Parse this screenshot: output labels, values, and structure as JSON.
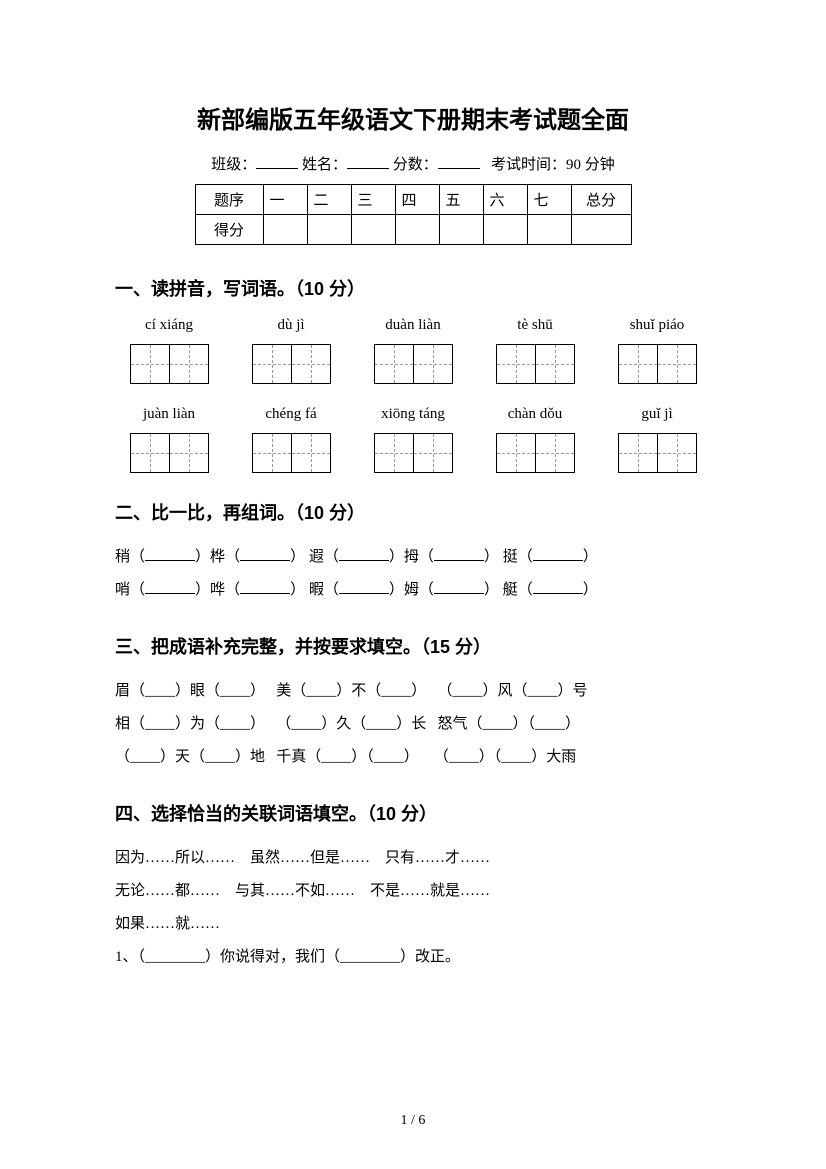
{
  "title": "新部编版五年级语文下册期末考试题全面",
  "meta": {
    "class_label": "班级：",
    "name_label": "姓名：",
    "score_label": "分数：",
    "exam_time": "考试时间：90 分钟"
  },
  "score_table": {
    "header_label": "题序",
    "row_label": "得分",
    "columns": [
      "一",
      "二",
      "三",
      "四",
      "五",
      "六",
      "七"
    ],
    "total_label": "总分"
  },
  "section1": {
    "title": "一、读拼音，写词语。（10 分）",
    "row1": [
      "cí xiáng",
      "dù jì",
      "duàn liàn",
      "tè shū",
      "shuǐ piáo"
    ],
    "row2": [
      "juàn liàn",
      "chéng fá",
      "xiōng táng",
      "chàn dǒu",
      "guǐ jì"
    ]
  },
  "section2": {
    "title": "二、比一比，再组词。（10 分）",
    "pairs": [
      [
        "稍",
        "哨"
      ],
      [
        "桦",
        "哗"
      ],
      [
        "遐",
        "暇"
      ],
      [
        "拇",
        "姆"
      ],
      [
        "挺",
        "艇"
      ]
    ]
  },
  "section3": {
    "title": "三、把成语补充完整，并按要求填空。（15 分）",
    "items_row1": [
      "眉（____）眼（____）",
      "美（____）不（____）",
      "（____）风（____）号"
    ],
    "items_row2": [
      "相（____）为（____）",
      "（____）久（____）长",
      "怒气（____）（____）"
    ],
    "items_row3": [
      "（____）天（____）地",
      "千真（____）（____）",
      "（____）（____）大雨"
    ]
  },
  "section4": {
    "title": "四、选择恰当的关联词语填空。（10 分）",
    "options_row1": [
      "因为……所以……",
      "虽然……但是……",
      "只有……才……"
    ],
    "options_row2": [
      "无论……都……",
      "与其……不如……",
      "不是……就是……"
    ],
    "options_row3": [
      "如果……就……"
    ],
    "q1": "1、（________）你说得对，我们（________）改正。"
  },
  "page_number": "1 / 6"
}
